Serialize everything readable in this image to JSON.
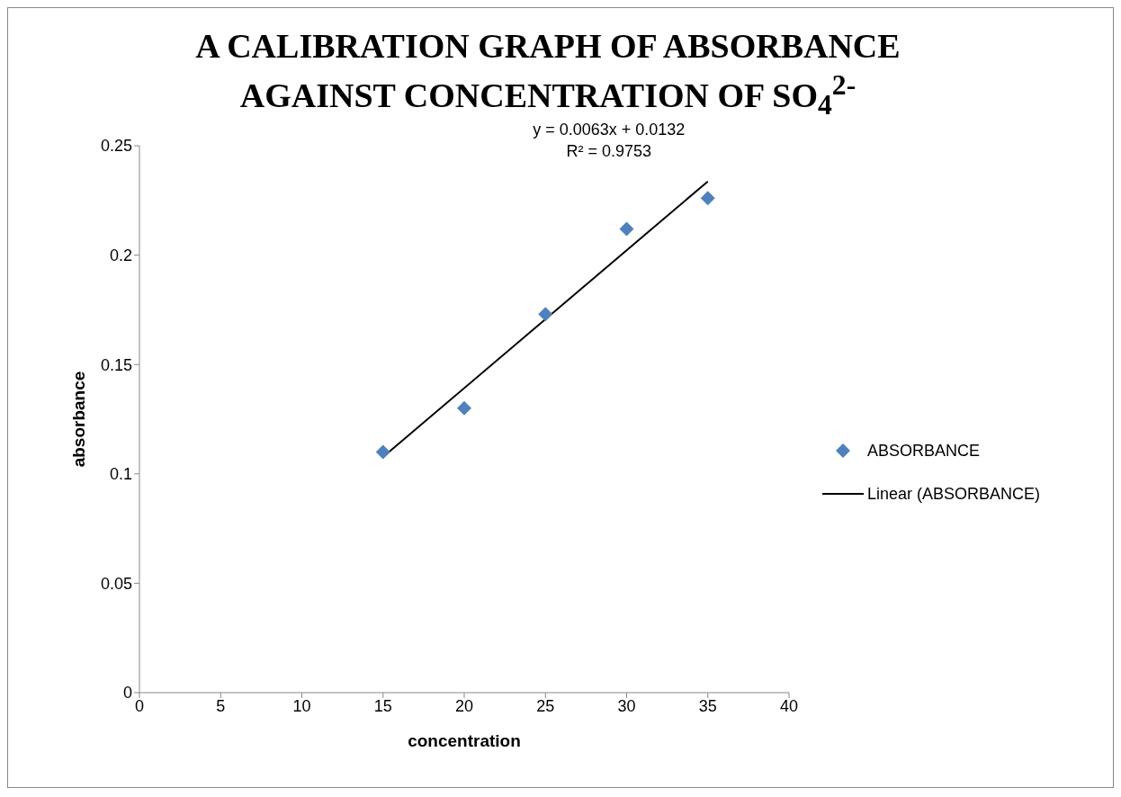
{
  "chart_data": {
    "type": "scatter",
    "title": "A CALIBRATION GRAPH OF ABSORBANCE AGAINST CONCENTRATION OF SO$_{4}$$^{2-}$",
    "xlabel": "concentration",
    "ylabel": "absorbance",
    "series": [
      {
        "name": "ABSORBANCE",
        "color": "#4f81bd",
        "marker": "diamond",
        "x": [
          15,
          20,
          25,
          30,
          35
        ],
        "values": [
          0.11,
          0.13,
          0.173,
          0.212,
          0.226
        ]
      },
      {
        "name": "Linear (ABSORBANCE)",
        "type": "line",
        "color": "#000000",
        "marker": "none",
        "x": [
          15,
          35
        ],
        "values": [
          0.1077,
          0.2337
        ]
      }
    ],
    "annotations": [
      "y = 0.0063x + 0.0132",
      "R² = 0.9753"
    ],
    "xlim": [
      0,
      40
    ],
    "xticks": [
      0,
      5,
      10,
      15,
      20,
      25,
      30,
      35,
      40
    ],
    "ylim": [
      0,
      0.25
    ],
    "yticks": [
      0,
      0.05,
      0.1,
      0.15,
      0.2,
      0.25
    ],
    "grid": false,
    "legend": "right"
  }
}
